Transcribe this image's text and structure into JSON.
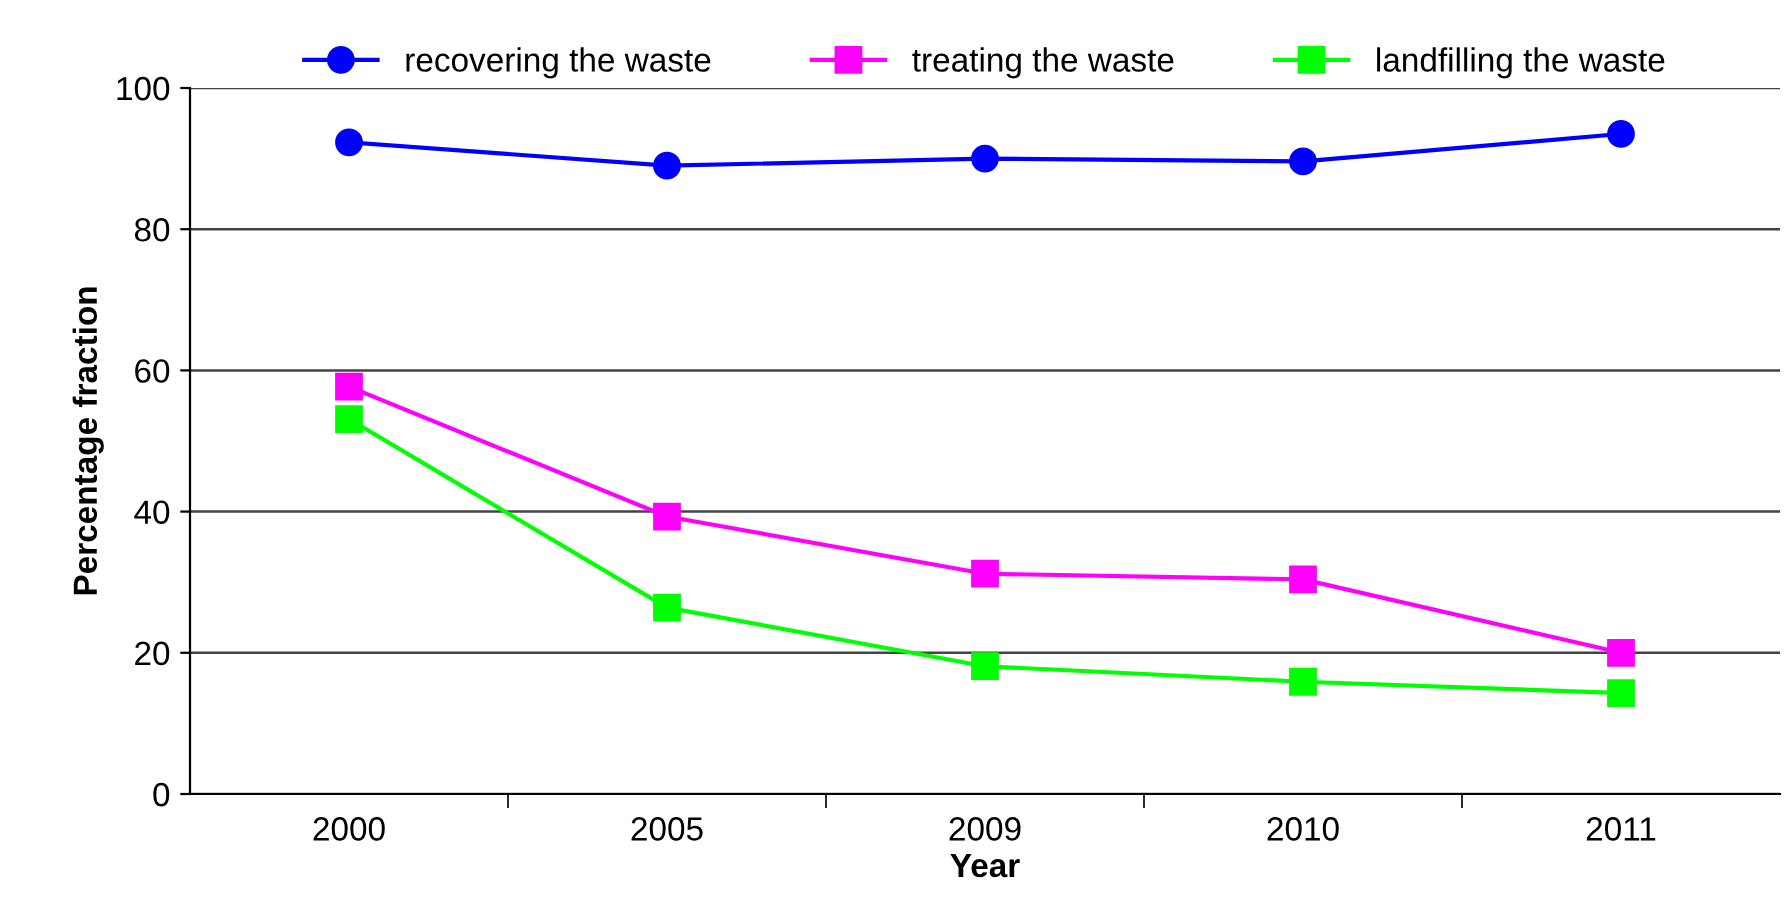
{
  "chart_data": {
    "type": "line",
    "xlabel": "Year",
    "ylabel": "Percentage fraction",
    "categories": [
      "2000",
      "2005",
      "2009",
      "2010",
      "2011"
    ],
    "series": [
      {
        "name": "recovering the waste",
        "color": "#0000ff",
        "marker": "circle",
        "values": [
          92.3,
          89.0,
          90.0,
          89.6,
          93.5
        ]
      },
      {
        "name": "treating the waste",
        "color": "#ff00ff",
        "marker": "square",
        "values": [
          57.7,
          39.3,
          31.2,
          30.4,
          20.0
        ]
      },
      {
        "name": "landfilling the waste",
        "color": "#00ff00",
        "marker": "square",
        "values": [
          53.1,
          26.4,
          18.1,
          15.9,
          14.3
        ]
      }
    ],
    "ylim": [
      0,
      100
    ],
    "yticks": [
      0,
      20,
      40,
      60,
      80,
      100
    ],
    "grid": "y",
    "legend": "top",
    "line_style": "solid"
  }
}
